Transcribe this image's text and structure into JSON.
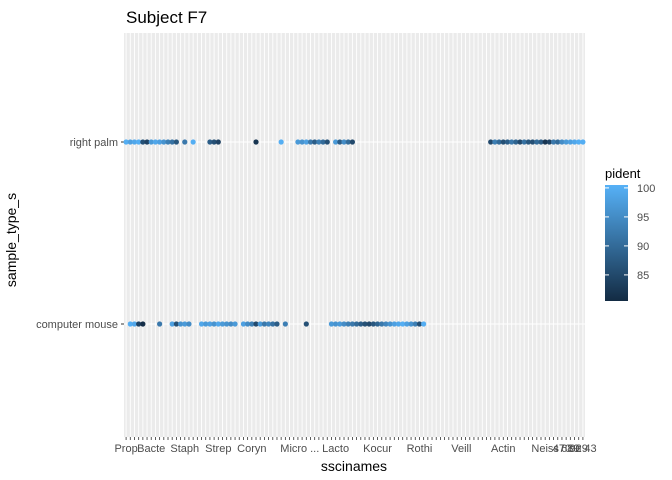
{
  "chart_data": {
    "type": "scatter",
    "title": "Subject F7",
    "xlabel": "sscinames",
    "ylabel": "sample_type_s",
    "categories_y": [
      "computer mouse",
      "right palm"
    ],
    "x_category_count": 110,
    "x_tick_labels_visible": [
      "Prop",
      "Bacte",
      "Staph",
      "Strep",
      "Coryn",
      "Micro",
      "Lacto",
      "Kocur",
      "Rothi",
      "Veill",
      "Actin",
      "Neiss",
      "...",
      "on 43",
      "470",
      "689",
      "929"
    ],
    "color_scale": {
      "variable": "pident",
      "min": 80.5,
      "max": 100.5,
      "ticks": [
        85,
        90,
        95,
        100
      ],
      "low_color": "#132b43",
      "high_color": "#56b1f7"
    },
    "series": [
      {
        "name": "right palm",
        "points": [
          {
            "x": 0,
            "pident": 100
          },
          {
            "x": 1,
            "pident": 98
          },
          {
            "x": 2,
            "pident": 99
          },
          {
            "x": 3,
            "pident": 100
          },
          {
            "x": 4,
            "pident": 86
          },
          {
            "x": 5,
            "pident": 84
          },
          {
            "x": 6,
            "pident": 97
          },
          {
            "x": 7,
            "pident": 99
          },
          {
            "x": 8,
            "pident": 98
          },
          {
            "x": 9,
            "pident": 96
          },
          {
            "x": 10,
            "pident": 93
          },
          {
            "x": 11,
            "pident": 91
          },
          {
            "x": 12,
            "pident": 87
          },
          {
            "x": 14,
            "pident": 92
          },
          {
            "x": 16,
            "pident": 100
          },
          {
            "x": 20,
            "pident": 88
          },
          {
            "x": 21,
            "pident": 86
          },
          {
            "x": 22,
            "pident": 84
          },
          {
            "x": 31,
            "pident": 82
          },
          {
            "x": 37,
            "pident": 100
          },
          {
            "x": 41,
            "pident": 97
          },
          {
            "x": 42,
            "pident": 96
          },
          {
            "x": 43,
            "pident": 98
          },
          {
            "x": 44,
            "pident": 92
          },
          {
            "x": 45,
            "pident": 88
          },
          {
            "x": 46,
            "pident": 93
          },
          {
            "x": 47,
            "pident": 90
          },
          {
            "x": 48,
            "pident": 86
          },
          {
            "x": 50,
            "pident": 97
          },
          {
            "x": 51,
            "pident": 88
          },
          {
            "x": 52,
            "pident": 95
          },
          {
            "x": 53,
            "pident": 90
          },
          {
            "x": 54,
            "pident": 85
          },
          {
            "x": 87,
            "pident": 85
          },
          {
            "x": 88,
            "pident": 93
          },
          {
            "x": 89,
            "pident": 90
          },
          {
            "x": 90,
            "pident": 86
          },
          {
            "x": 91,
            "pident": 88
          },
          {
            "x": 92,
            "pident": 92
          },
          {
            "x": 93,
            "pident": 89
          },
          {
            "x": 94,
            "pident": 85
          },
          {
            "x": 95,
            "pident": 91
          },
          {
            "x": 96,
            "pident": 87
          },
          {
            "x": 97,
            "pident": 86
          },
          {
            "x": 98,
            "pident": 90
          },
          {
            "x": 99,
            "pident": 88
          },
          {
            "x": 100,
            "pident": 82
          },
          {
            "x": 101,
            "pident": 84
          },
          {
            "x": 102,
            "pident": 92
          },
          {
            "x": 103,
            "pident": 90
          },
          {
            "x": 104,
            "pident": 95
          },
          {
            "x": 105,
            "pident": 97
          },
          {
            "x": 106,
            "pident": 98
          },
          {
            "x": 107,
            "pident": 99
          },
          {
            "x": 108,
            "pident": 100
          },
          {
            "x": 109,
            "pident": 100
          }
        ]
      },
      {
        "name": "computer mouse",
        "points": [
          {
            "x": 1,
            "pident": 100
          },
          {
            "x": 2,
            "pident": 99
          },
          {
            "x": 3,
            "pident": 84
          },
          {
            "x": 4,
            "pident": 81
          },
          {
            "x": 8,
            "pident": 92
          },
          {
            "x": 11,
            "pident": 98
          },
          {
            "x": 12,
            "pident": 86
          },
          {
            "x": 13,
            "pident": 96
          },
          {
            "x": 14,
            "pident": 97
          },
          {
            "x": 15,
            "pident": 95
          },
          {
            "x": 18,
            "pident": 99
          },
          {
            "x": 19,
            "pident": 97
          },
          {
            "x": 20,
            "pident": 98
          },
          {
            "x": 21,
            "pident": 96
          },
          {
            "x": 22,
            "pident": 99
          },
          {
            "x": 23,
            "pident": 97
          },
          {
            "x": 24,
            "pident": 96
          },
          {
            "x": 25,
            "pident": 95
          },
          {
            "x": 26,
            "pident": 97
          },
          {
            "x": 28,
            "pident": 98
          },
          {
            "x": 29,
            "pident": 95
          },
          {
            "x": 30,
            "pident": 93
          },
          {
            "x": 31,
            "pident": 85
          },
          {
            "x": 32,
            "pident": 97
          },
          {
            "x": 33,
            "pident": 92
          },
          {
            "x": 34,
            "pident": 94
          },
          {
            "x": 35,
            "pident": 91
          },
          {
            "x": 36,
            "pident": 88
          },
          {
            "x": 38,
            "pident": 93
          },
          {
            "x": 43,
            "pident": 86
          },
          {
            "x": 49,
            "pident": 97
          },
          {
            "x": 50,
            "pident": 96
          },
          {
            "x": 51,
            "pident": 97
          },
          {
            "x": 52,
            "pident": 95
          },
          {
            "x": 53,
            "pident": 93
          },
          {
            "x": 54,
            "pident": 92
          },
          {
            "x": 55,
            "pident": 90
          },
          {
            "x": 56,
            "pident": 88
          },
          {
            "x": 57,
            "pident": 86
          },
          {
            "x": 58,
            "pident": 85
          },
          {
            "x": 59,
            "pident": 87
          },
          {
            "x": 60,
            "pident": 89
          },
          {
            "x": 61,
            "pident": 92
          },
          {
            "x": 62,
            "pident": 94
          },
          {
            "x": 63,
            "pident": 96
          },
          {
            "x": 64,
            "pident": 98
          },
          {
            "x": 65,
            "pident": 99
          },
          {
            "x": 66,
            "pident": 100
          },
          {
            "x": 67,
            "pident": 98
          },
          {
            "x": 68,
            "pident": 96
          },
          {
            "x": 69,
            "pident": 93
          },
          {
            "x": 70,
            "pident": 86
          },
          {
            "x": 71,
            "pident": 100
          }
        ]
      }
    ],
    "grid": true,
    "legend_position": "right"
  }
}
